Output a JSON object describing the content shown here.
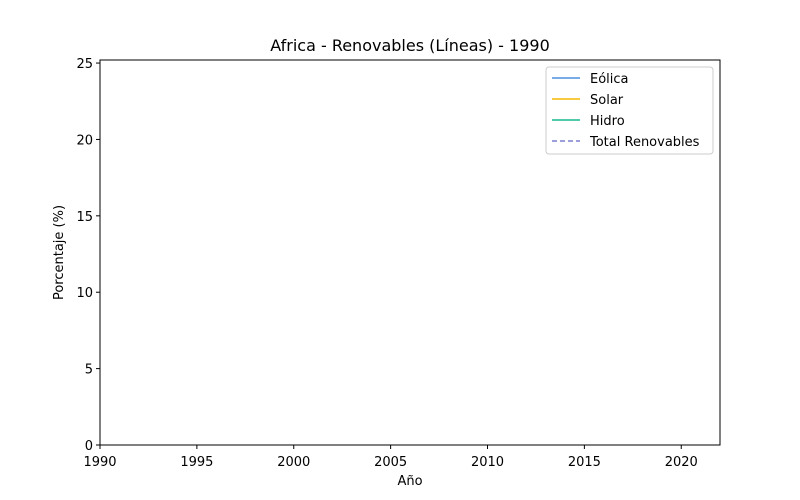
{
  "chart_data": {
    "type": "line",
    "title": "Africa - Renovables (Líneas) - 1990",
    "xlabel": "Año",
    "ylabel": "Porcentaje (%)",
    "xlim": [
      1990,
      2022
    ],
    "ylim": [
      0,
      25.2
    ],
    "x_ticks": [
      1990,
      1995,
      2000,
      2005,
      2010,
      2015,
      2020
    ],
    "y_ticks": [
      0,
      5,
      10,
      15,
      20,
      25
    ],
    "grid": false,
    "legend_position": "top-right",
    "series": [
      {
        "name": "Eólica",
        "color": "#4a90e2",
        "style": "solid",
        "x": [],
        "y": []
      },
      {
        "name": "Solar",
        "color": "#f5b800",
        "style": "solid",
        "x": [],
        "y": []
      },
      {
        "name": "Hidro",
        "color": "#16b98f",
        "style": "solid",
        "x": [],
        "y": []
      },
      {
        "name": "Total Renovables",
        "color": "#7b7fd4",
        "style": "dashed",
        "x": [],
        "y": []
      }
    ]
  }
}
